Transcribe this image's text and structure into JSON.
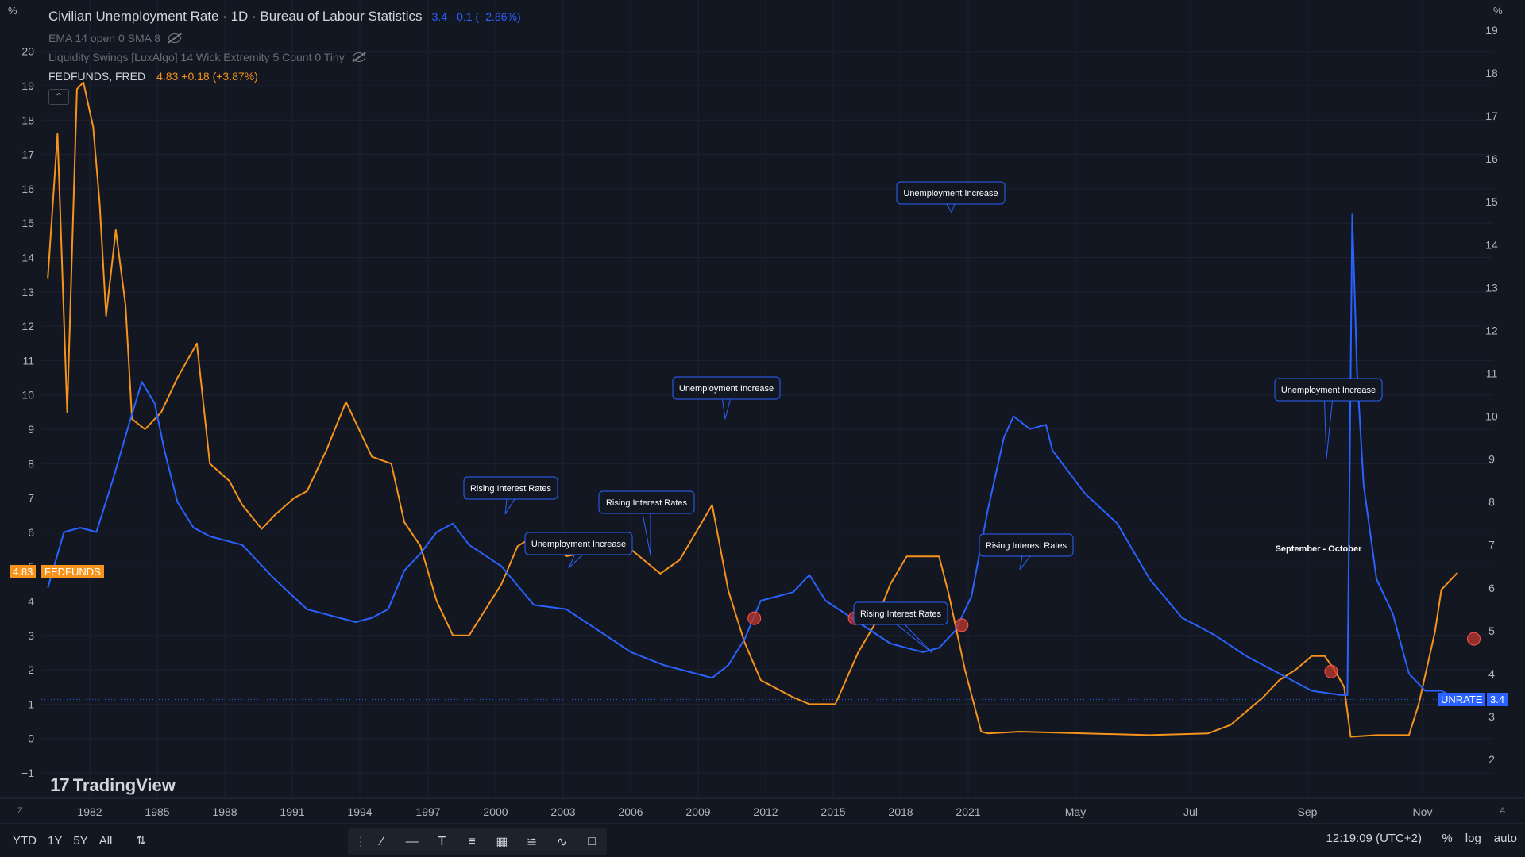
{
  "legend": {
    "title": "Civilian Unemployment Rate · 1D · Bureau of Labour Statistics",
    "title_values": "3.4  −0.1 (−2.86%)",
    "ema": "EMA  14 open 0 SMA 8",
    "indicator": "Liquidity Swings [LuxAlgo]  14 Wick Extremity 5 Count 0 Tiny",
    "fed_label": "FEDFUNDS, FRED",
    "fed_values": "4.83  +0.18 (+3.87%)",
    "collapse_icon": "chevron-up-icon"
  },
  "axes": {
    "left_unit": "%",
    "right_unit": "%",
    "left_ticks": [
      "20",
      "19",
      "18",
      "17",
      "16",
      "15",
      "14",
      "13",
      "12",
      "11",
      "10",
      "9",
      "8",
      "7",
      "6",
      "5",
      "4",
      "3",
      "2",
      "1",
      "0",
      "−1"
    ],
    "right_ticks": [
      "19",
      "18",
      "17",
      "16",
      "15",
      "14",
      "13",
      "12",
      "11",
      "10",
      "9",
      "8",
      "7",
      "6",
      "5",
      "4",
      "3",
      "2"
    ],
    "x_ticks": [
      "1982",
      "1985",
      "1988",
      "1991",
      "1994",
      "1997",
      "2000",
      "2003",
      "2006",
      "2009",
      "2012",
      "2015",
      "2018",
      "2021",
      "May",
      "Jul",
      "Sep",
      "Nov"
    ]
  },
  "tags": {
    "fedfunds_value": "4.83",
    "fedfunds_label": "FEDFUNDS",
    "unrate_label": "UNRATE",
    "unrate_value": "3.4",
    "fedfunds_color": "#f7931a",
    "unrate_color": "#2962ff"
  },
  "annotations": {
    "callouts": [
      "Rising Interest Rates",
      "Unemployment Increase",
      "Rising Interest Rates",
      "Unemployment Increase",
      "Unemployment Increase",
      "Rising Interest Rates",
      "Rising Interest Rates",
      "Unemployment Increase"
    ],
    "season_note": "September - October"
  },
  "brand": "TradingView",
  "bottom": {
    "ranges": [
      "YTD",
      "1Y",
      "5Y",
      "All"
    ],
    "compare_icon": "compare-icon",
    "tools": [
      "drag-handle-icon",
      "trend-line-icon",
      "horizontal-ray-icon",
      "text-icon",
      "fib-retracement-icon",
      "grid-icon",
      "parallel-channel-icon",
      "path-icon",
      "comment-icon"
    ],
    "time": "12:19:09 (UTC+2)",
    "scale_options": [
      "%",
      "log",
      "auto"
    ]
  },
  "chart_data": {
    "type": "line",
    "x_unit": "year",
    "xlim": [
      1979.8,
      2024.6
    ],
    "series": [
      {
        "name": "FEDFUNDS, FRED",
        "axis": "left",
        "color": "#f7931a",
        "x": [
          1980.0,
          1980.3,
          1980.6,
          1980.9,
          1981.1,
          1981.4,
          1981.6,
          1981.8,
          1982.1,
          1982.4,
          1982.6,
          1983.0,
          1983.5,
          1984.0,
          1984.6,
          1985.0,
          1985.6,
          1986.0,
          1986.6,
          1987.0,
          1987.6,
          1988.0,
          1988.6,
          1989.2,
          1989.6,
          1990.0,
          1990.6,
          1991.0,
          1991.5,
          1992.0,
          1992.5,
          1993.0,
          1994.0,
          1994.5,
          1995.2,
          1996.0,
          1997.0,
          1998.0,
          1998.9,
          1999.5,
          2000.0,
          2000.5,
          2001.0,
          2001.5,
          2002.0,
          2003.0,
          2003.5,
          2004.3,
          2005.0,
          2005.5,
          2006.0,
          2006.5,
          2007.5,
          2007.8,
          2008.3,
          2008.8,
          2009.0,
          2010.0,
          2012.0,
          2014.0,
          2015.8,
          2016.5,
          2017.5,
          2018.0,
          2018.5,
          2019.0,
          2019.4,
          2019.7,
          2020.0,
          2020.2,
          2021.0,
          2022.0,
          2022.3,
          2022.8,
          2023.0,
          2023.5
        ],
        "y": [
          13.4,
          17.6,
          9.5,
          18.9,
          19.1,
          17.8,
          15.6,
          12.3,
          14.8,
          12.6,
          9.3,
          9.0,
          9.5,
          10.5,
          11.5,
          8.0,
          7.5,
          6.8,
          6.1,
          6.5,
          7.0,
          7.2,
          8.4,
          9.8,
          9.0,
          8.2,
          8.0,
          6.3,
          5.6,
          4.0,
          3.0,
          3.0,
          4.5,
          5.6,
          6.0,
          5.3,
          5.5,
          5.5,
          4.8,
          5.2,
          6.0,
          6.8,
          4.3,
          2.8,
          1.7,
          1.2,
          1.0,
          1.0,
          2.5,
          3.3,
          4.5,
          5.3,
          5.3,
          4.2,
          2.0,
          0.2,
          0.15,
          0.2,
          0.15,
          0.1,
          0.15,
          0.4,
          1.2,
          1.7,
          2.0,
          2.4,
          2.4,
          2.0,
          1.5,
          0.05,
          0.1,
          0.1,
          1.0,
          3.1,
          4.33,
          4.83
        ]
      },
      {
        "name": "Civilian Unemployment Rate",
        "axis": "right",
        "color": "#2962ff",
        "x": [
          1980.0,
          1980.5,
          1981.0,
          1981.5,
          1982.0,
          1982.5,
          1982.9,
          1983.3,
          1983.6,
          1984.0,
          1984.5,
          1985.0,
          1986.0,
          1987.0,
          1988.0,
          1989.0,
          1989.5,
          1990.0,
          1990.5,
          1991.0,
          1991.5,
          1992.0,
          1992.5,
          1993.0,
          1994.0,
          1995.0,
          1996.0,
          1997.0,
          1998.0,
          1999.0,
          2000.0,
          2000.5,
          2001.0,
          2001.5,
          2002.0,
          2002.5,
          2003.0,
          2003.5,
          2004.0,
          2005.0,
          2006.0,
          2007.0,
          2007.5,
          2008.0,
          2008.5,
          2009.0,
          2009.5,
          2009.8,
          2010.3,
          2010.8,
          2011.0,
          2012.0,
          2013.0,
          2014.0,
          2015.0,
          2016.0,
          2017.0,
          2018.0,
          2019.0,
          2019.9,
          2020.1,
          2020.25,
          2020.4,
          2020.6,
          2021.0,
          2021.5,
          2022.0,
          2022.5,
          2023.0,
          2023.5
        ],
        "y": [
          6.0,
          7.3,
          7.4,
          7.3,
          8.5,
          9.8,
          10.8,
          10.3,
          9.2,
          8.0,
          7.4,
          7.2,
          7.0,
          6.2,
          5.5,
          5.3,
          5.2,
          5.3,
          5.5,
          6.4,
          6.8,
          7.3,
          7.5,
          7.0,
          6.5,
          5.6,
          5.5,
          5.0,
          4.5,
          4.2,
          4.0,
          3.9,
          4.2,
          4.8,
          5.7,
          5.8,
          5.9,
          6.3,
          5.7,
          5.2,
          4.7,
          4.5,
          4.6,
          5.0,
          5.8,
          7.8,
          9.5,
          10.0,
          9.7,
          9.8,
          9.2,
          8.2,
          7.5,
          6.2,
          5.3,
          4.9,
          4.4,
          4.0,
          3.6,
          3.5,
          3.5,
          14.7,
          11.0,
          8.4,
          6.2,
          5.4,
          4.0,
          3.6,
          3.6,
          3.4
        ]
      }
    ],
    "left_axis": {
      "unit": "%",
      "ylim": [
        -1.5,
        20.5
      ]
    },
    "right_axis": {
      "unit": "%",
      "ylim": [
        1.5,
        19.5
      ]
    },
    "reference_line": {
      "series": "UNRATE",
      "value": 3.4
    },
    "markers": [
      {
        "x": 2001.8,
        "y_left": 3.5
      },
      {
        "x": 2004.9,
        "y_left": 3.5
      },
      {
        "x": 2008.2,
        "y_left": 3.3
      },
      {
        "x": 2019.6,
        "y_left": 1.95
      },
      {
        "x": 2024.0,
        "y_left": 2.9
      }
    ],
    "grid": true
  }
}
